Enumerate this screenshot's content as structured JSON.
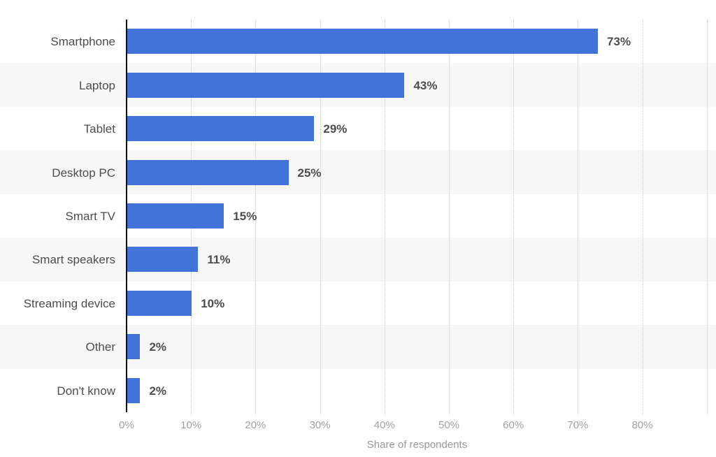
{
  "chart_data": {
    "type": "bar",
    "orientation": "horizontal",
    "title": "",
    "xlabel": "Share of respondents",
    "ylabel": "",
    "categories": [
      "Smartphone",
      "Laptop",
      "Tablet",
      "Desktop PC",
      "Smart TV",
      "Smart speakers",
      "Streaming device",
      "Other",
      "Don't know"
    ],
    "values": [
      73,
      43,
      29,
      25,
      15,
      11,
      10,
      2,
      2
    ],
    "value_labels": [
      "73%",
      "43%",
      "29%",
      "25%",
      "15%",
      "11%",
      "10%",
      "2%",
      "2%"
    ],
    "x_ticks": [
      0,
      10,
      20,
      30,
      40,
      50,
      60,
      70,
      80
    ],
    "x_tick_labels": [
      "0%",
      "10%",
      "20%",
      "30%",
      "40%",
      "50%",
      "60%",
      "70%",
      "80%"
    ],
    "xlim": [
      0,
      90
    ],
    "grid": "vertical-dotted",
    "legend": "none",
    "colors": {
      "bar": "#4273d8",
      "stripe": "#f7f7f7",
      "axis": "#111111",
      "gridline": "#c9c9c9",
      "category_label": "#4d4d4d",
      "value_label": "#4d4d4d",
      "tick_label": "#a0a0a0",
      "axis_title": "#999999",
      "background": "#ffffff"
    }
  }
}
